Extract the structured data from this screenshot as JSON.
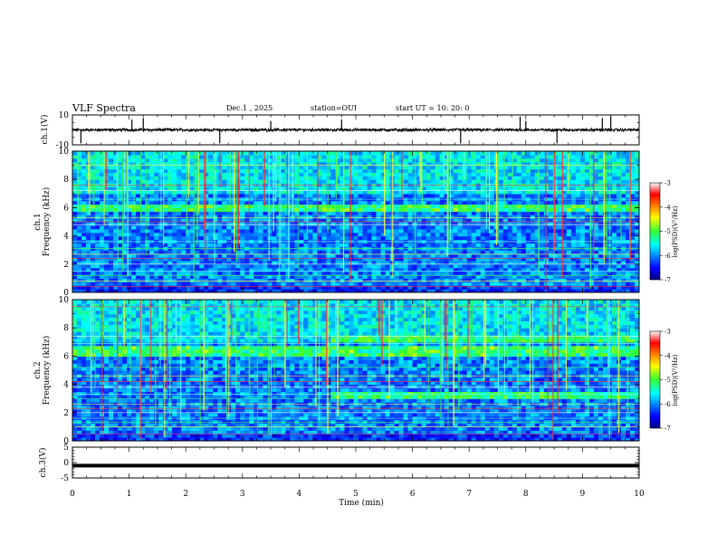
{
  "header": {
    "title": "VLF Spectra",
    "date": "Dec.1 , 2025",
    "station": "station=OUI",
    "start": "start UT =   10: 20: 0"
  },
  "chart_data": [
    {
      "type": "line",
      "name": "ch1-waveform",
      "ylabel": "ch.1(V)",
      "ylim": [
        -10,
        10
      ],
      "yticks": [
        10,
        -10
      ],
      "xlim": [
        0,
        10
      ],
      "baseline": 0,
      "spikes_min": [
        0.15,
        1.05,
        1.25,
        2.6,
        3.5,
        4.75,
        6.85,
        7.9,
        8.0,
        8.55,
        9.35,
        9.5
      ]
    },
    {
      "type": "heatmap",
      "name": "ch1-spectrogram",
      "ylabel": "ch.1\nFrequency (kHz)",
      "ylim": [
        0,
        10
      ],
      "yticks": [
        0,
        2,
        4,
        6,
        8,
        10
      ],
      "xlim": [
        0,
        10
      ],
      "noise_band_khz": [
        5.8,
        6.3
      ],
      "interference_lines_khz": [
        0.4,
        0.8,
        1.2,
        1.5,
        2.0,
        2.4,
        2.7,
        3.1,
        3.6,
        4.8,
        5.0,
        5.3,
        6.1,
        6.6,
        7.2,
        7.6,
        9.0
      ],
      "colorbar": {
        "label": "log(PSD)(V²/Hz)",
        "min": -7,
        "max": -3,
        "ticks": [
          -3,
          -4,
          -5,
          -6,
          -7
        ]
      }
    },
    {
      "type": "heatmap",
      "name": "ch2-spectrogram",
      "ylabel": "ch.2\nFrequency (kHz)",
      "ylim": [
        0,
        10
      ],
      "yticks": [
        0,
        2,
        4,
        6,
        8,
        10
      ],
      "xlim": [
        0,
        10
      ],
      "noise_band_khz": [
        6.0,
        6.8
      ],
      "band_shift": {
        "time_min": 4.6,
        "low_band_khz": [
          3.1,
          3.6
        ]
      },
      "interference_lines_khz": [
        0.5,
        1.0,
        1.3,
        1.6,
        2.0,
        2.3,
        2.6,
        3.0,
        3.3,
        3.8,
        4.2,
        4.6,
        5.2,
        6.9,
        7.4,
        9.5
      ],
      "colorbar": {
        "label": "log(PSD)(V²/Hz)",
        "min": -7,
        "max": -3,
        "ticks": [
          -3,
          -4,
          -5,
          -6,
          -7
        ]
      }
    },
    {
      "type": "line",
      "name": "ch3-waveform",
      "ylabel": "ch.3(V)",
      "ylim": [
        -5,
        5
      ],
      "yticks": [
        5,
        0,
        -5
      ],
      "xlim": [
        0,
        10
      ],
      "constant_value": -1,
      "xlabel": "Time (min)",
      "xticks": [
        0,
        1,
        2,
        3,
        4,
        5,
        6,
        7,
        8,
        9,
        10
      ]
    }
  ]
}
